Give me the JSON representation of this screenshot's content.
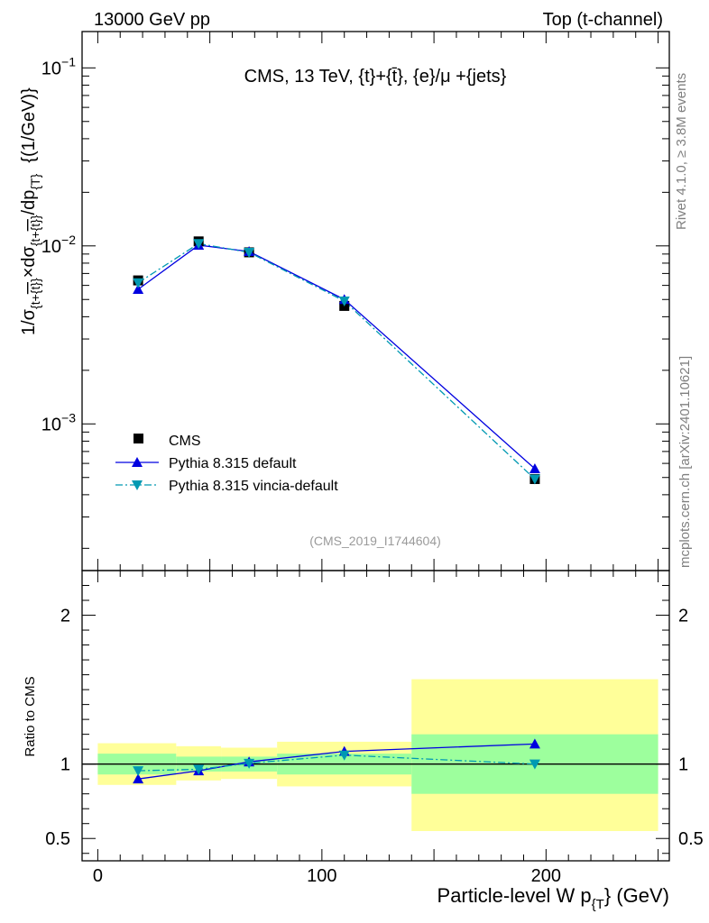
{
  "header": {
    "left": "13000 GeV pp",
    "right": "Top (t-channel)"
  },
  "side_labels": {
    "rivet": "Rivet 4.1.0, ≥ 3.8M events",
    "mcplots": "mcplots.cern.ch [arXiv:2401.10621]"
  },
  "colors": {
    "cms": "#000000",
    "default": "#0000e0",
    "vincia": "#0099b2",
    "band_inner": "#9dff9d",
    "band_outer": "#ffff99"
  },
  "chart_data": [
    {
      "type": "line",
      "panel": "main",
      "title": "CMS, 13 TeV, {t}+{t̄}, {e}/μ +{jets}",
      "ylabel": "1/σ_{t+t̄} × dσ_{t+t̄}/dp_T {(1/GeV)}",
      "ylabel_parts": {
        "a": "1/σ",
        "a_sub": "{t+",
        "a_bar": "{t}",
        "a_sub2": "}",
        "b": "×dσ",
        "b_sub": "{t+",
        "b_bar": "{t}",
        "b_sub2": "}",
        "c": "/dp",
        "c_sub": "{T",
        "c_sub2": "}",
        "d": "{(1/GeV)}"
      },
      "yscale": "log",
      "xlim": [
        -7,
        255
      ],
      "ylim": [
        0.00015,
        0.16
      ],
      "yticks": [
        {
          "value": 0.001,
          "base": "10",
          "exp": "−3"
        },
        {
          "value": 0.01,
          "base": "10",
          "exp": "−2"
        },
        {
          "value": 0.1,
          "base": "10",
          "exp": "−1"
        }
      ],
      "watermark": "(CMS_2019_I1744604)",
      "legend_position": "bottom-left",
      "series": [
        {
          "name": "CMS",
          "style": "square",
          "x": [
            18,
            45,
            67.5,
            110,
            195
          ],
          "y": [
            0.0064,
            0.0106,
            0.0092,
            0.0046,
            0.00049
          ]
        },
        {
          "name": "Pythia 8.315 default",
          "style": "triangle-up-solid",
          "x": [
            18,
            45,
            67.5,
            110,
            195
          ],
          "y": [
            0.0057,
            0.0101,
            0.0093,
            0.005,
            0.00056
          ]
        },
        {
          "name": "Pythia 8.315 vincia-default",
          "style": "triangle-down-dashdot",
          "x": [
            18,
            45,
            67.5,
            110,
            195
          ],
          "y": [
            0.0062,
            0.0103,
            0.0092,
            0.0049,
            0.00049
          ]
        }
      ]
    },
    {
      "type": "line",
      "panel": "ratio",
      "ylabel": "Ratio to CMS",
      "xlabel_main": "Particle-level W p",
      "xlabel_sub": "{T",
      "xlabel_end": "} (GeV)",
      "xlim": [
        -7,
        255
      ],
      "ylim": [
        0.35,
        2.3
      ],
      "yticks": [
        {
          "value": 0.5,
          "label": "0.5"
        },
        {
          "value": 1,
          "label": "1"
        },
        {
          "value": 2,
          "label": "2"
        }
      ],
      "xticks": [
        {
          "value": 0,
          "label": "0"
        },
        {
          "value": 100,
          "label": "100"
        },
        {
          "value": 200,
          "label": "200"
        }
      ],
      "bands": [
        {
          "xlo": 0,
          "xhi": 35,
          "inner": [
            0.93,
            1.07
          ],
          "outer": [
            0.86,
            1.14
          ]
        },
        {
          "xlo": 35,
          "xhi": 55,
          "inner": [
            0.95,
            1.05
          ],
          "outer": [
            0.89,
            1.12
          ]
        },
        {
          "xlo": 55,
          "xhi": 80,
          "inner": [
            0.95,
            1.05
          ],
          "outer": [
            0.9,
            1.11
          ]
        },
        {
          "xlo": 80,
          "xhi": 140,
          "inner": [
            0.93,
            1.07
          ],
          "outer": [
            0.85,
            1.15
          ]
        },
        {
          "xlo": 140,
          "xhi": 250,
          "inner": [
            0.8,
            1.2
          ],
          "outer": [
            0.55,
            1.57
          ]
        }
      ],
      "series": [
        {
          "name": "Pythia 8.315 default",
          "x": [
            18,
            45,
            67.5,
            110,
            195
          ],
          "y": [
            0.9,
            0.955,
            1.015,
            1.085,
            1.135
          ]
        },
        {
          "name": "Pythia 8.315 vincia-default",
          "x": [
            18,
            45,
            67.5,
            110,
            195
          ],
          "y": [
            0.955,
            0.965,
            1.005,
            1.06,
            1.0
          ]
        }
      ]
    }
  ]
}
